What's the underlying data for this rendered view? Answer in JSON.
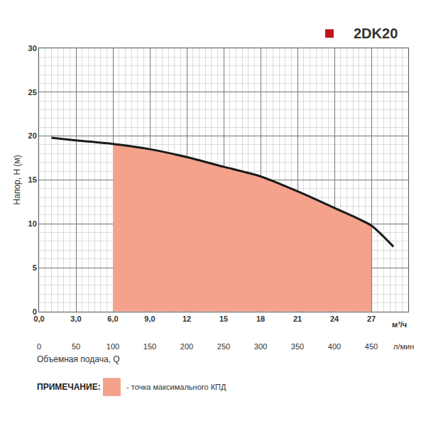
{
  "chart_data": {
    "type": "line",
    "title": "2DK20",
    "x": [
      1.0,
      3,
      6,
      9,
      12,
      15,
      18,
      21,
      24,
      27,
      28.8
    ],
    "values": [
      19.8,
      19.5,
      19.1,
      18.5,
      17.6,
      16.5,
      15.4,
      13.7,
      11.8,
      9.8,
      7.4
    ],
    "color": "#1a1a1a",
    "xlim": [
      0,
      30
    ],
    "xticks": [
      {
        "value": 0,
        "label": "0,0"
      },
      {
        "value": 3,
        "label": "3,0"
      },
      {
        "value": 6,
        "label": "6,0"
      },
      {
        "value": 9,
        "label": "9,0"
      },
      12,
      15,
      18,
      21,
      24,
      27
    ],
    "x_unit": "м³/ч",
    "x2lim": [
      0,
      500
    ],
    "x2ticks": [
      0,
      50,
      100,
      150,
      200,
      250,
      300,
      350,
      400,
      450
    ],
    "x2_unit": "л/мин",
    "x_label": "Объемная подача, Q",
    "y_label": "Напор, Н (м)",
    "ylim": [
      0,
      30
    ],
    "yticks": [
      0,
      5,
      10,
      15,
      20,
      25,
      30
    ],
    "grid": true,
    "highlight": {
      "x_range": [
        6,
        27
      ],
      "color": "#f4a28c",
      "label": "- точка максимального КПД"
    },
    "note_title": "ПРИМЕЧАНИЕ:"
  }
}
